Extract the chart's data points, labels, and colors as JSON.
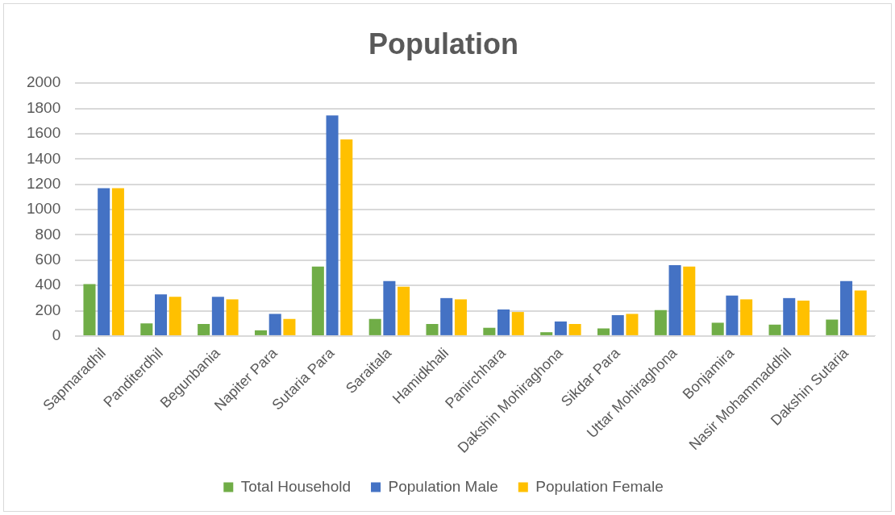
{
  "chart_data": {
    "type": "bar",
    "title": "Population",
    "categories": [
      "Sapmaradhil",
      "Panditerdhil",
      "Begunbania",
      "Napiter Para",
      "Sutaria Para",
      "Saraitala",
      "Hamidkhali",
      "Panirchhara",
      "Dakshin Mohiraghona",
      "Sikdar Para",
      "Uttar Mohiraghona",
      "Bonjamira",
      "Nasir Mohammaddhil",
      "Dakshin Sutaria"
    ],
    "series": [
      {
        "name": "Total Household",
        "color": "#70ad47",
        "values": [
          410,
          100,
          95,
          45,
          550,
          135,
          95,
          65,
          30,
          60,
          205,
          105,
          90,
          130
        ]
      },
      {
        "name": "Population Male",
        "color": "#4472c4",
        "values": [
          1170,
          330,
          310,
          175,
          1745,
          435,
          300,
          210,
          115,
          165,
          560,
          320,
          300,
          435
        ]
      },
      {
        "name": "Population Female",
        "color": "#ffc000",
        "values": [
          1170,
          310,
          290,
          135,
          1555,
          390,
          290,
          190,
          95,
          175,
          550,
          290,
          280,
          360
        ]
      }
    ],
    "ylim": [
      0,
      2000
    ],
    "yticks": [
      0,
      200,
      400,
      600,
      800,
      1000,
      1200,
      1400,
      1600,
      1800,
      2000
    ],
    "grid": "y",
    "legend": "bottom"
  }
}
